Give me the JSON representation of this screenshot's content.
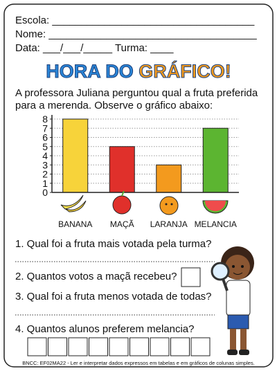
{
  "header": {
    "fields": [
      "Escola: ___________________________________",
      "Nome: ____________________________________",
      "Data: ___/___/_____ Turma: ____"
    ]
  },
  "title_parts": [
    "HORA DO",
    "GRÁFICO!"
  ],
  "intro": [
    "A professora Juliana perguntou qual a fruta preferida",
    "para a merenda. Observe o gráfico abaixo:"
  ],
  "chart_data": {
    "type": "bar",
    "categories": [
      "BANANA",
      "MAÇÃ",
      "LARANJA",
      "MELANCIA"
    ],
    "values": [
      8,
      5,
      3,
      7
    ],
    "colors": [
      "#f7d33a",
      "#e0302b",
      "#f39a1e",
      "#5cb531"
    ],
    "ylim": [
      0,
      8
    ],
    "yticks": [
      0,
      1,
      2,
      3,
      4,
      5,
      6,
      7,
      8
    ],
    "grid": true
  },
  "questions": [
    "1. Qual foi a fruta mais votada pela turma?",
    "2. Quantos votos a maçã recebeu?",
    "3. Qual foi a fruta menos votada de todas?",
    "4. Quantos alunos preferem melancia?"
  ],
  "footer": "BNCC: EF02MA22 - Ler e interpretar dados expressos em tabelas e em gráficos de colunas simples."
}
